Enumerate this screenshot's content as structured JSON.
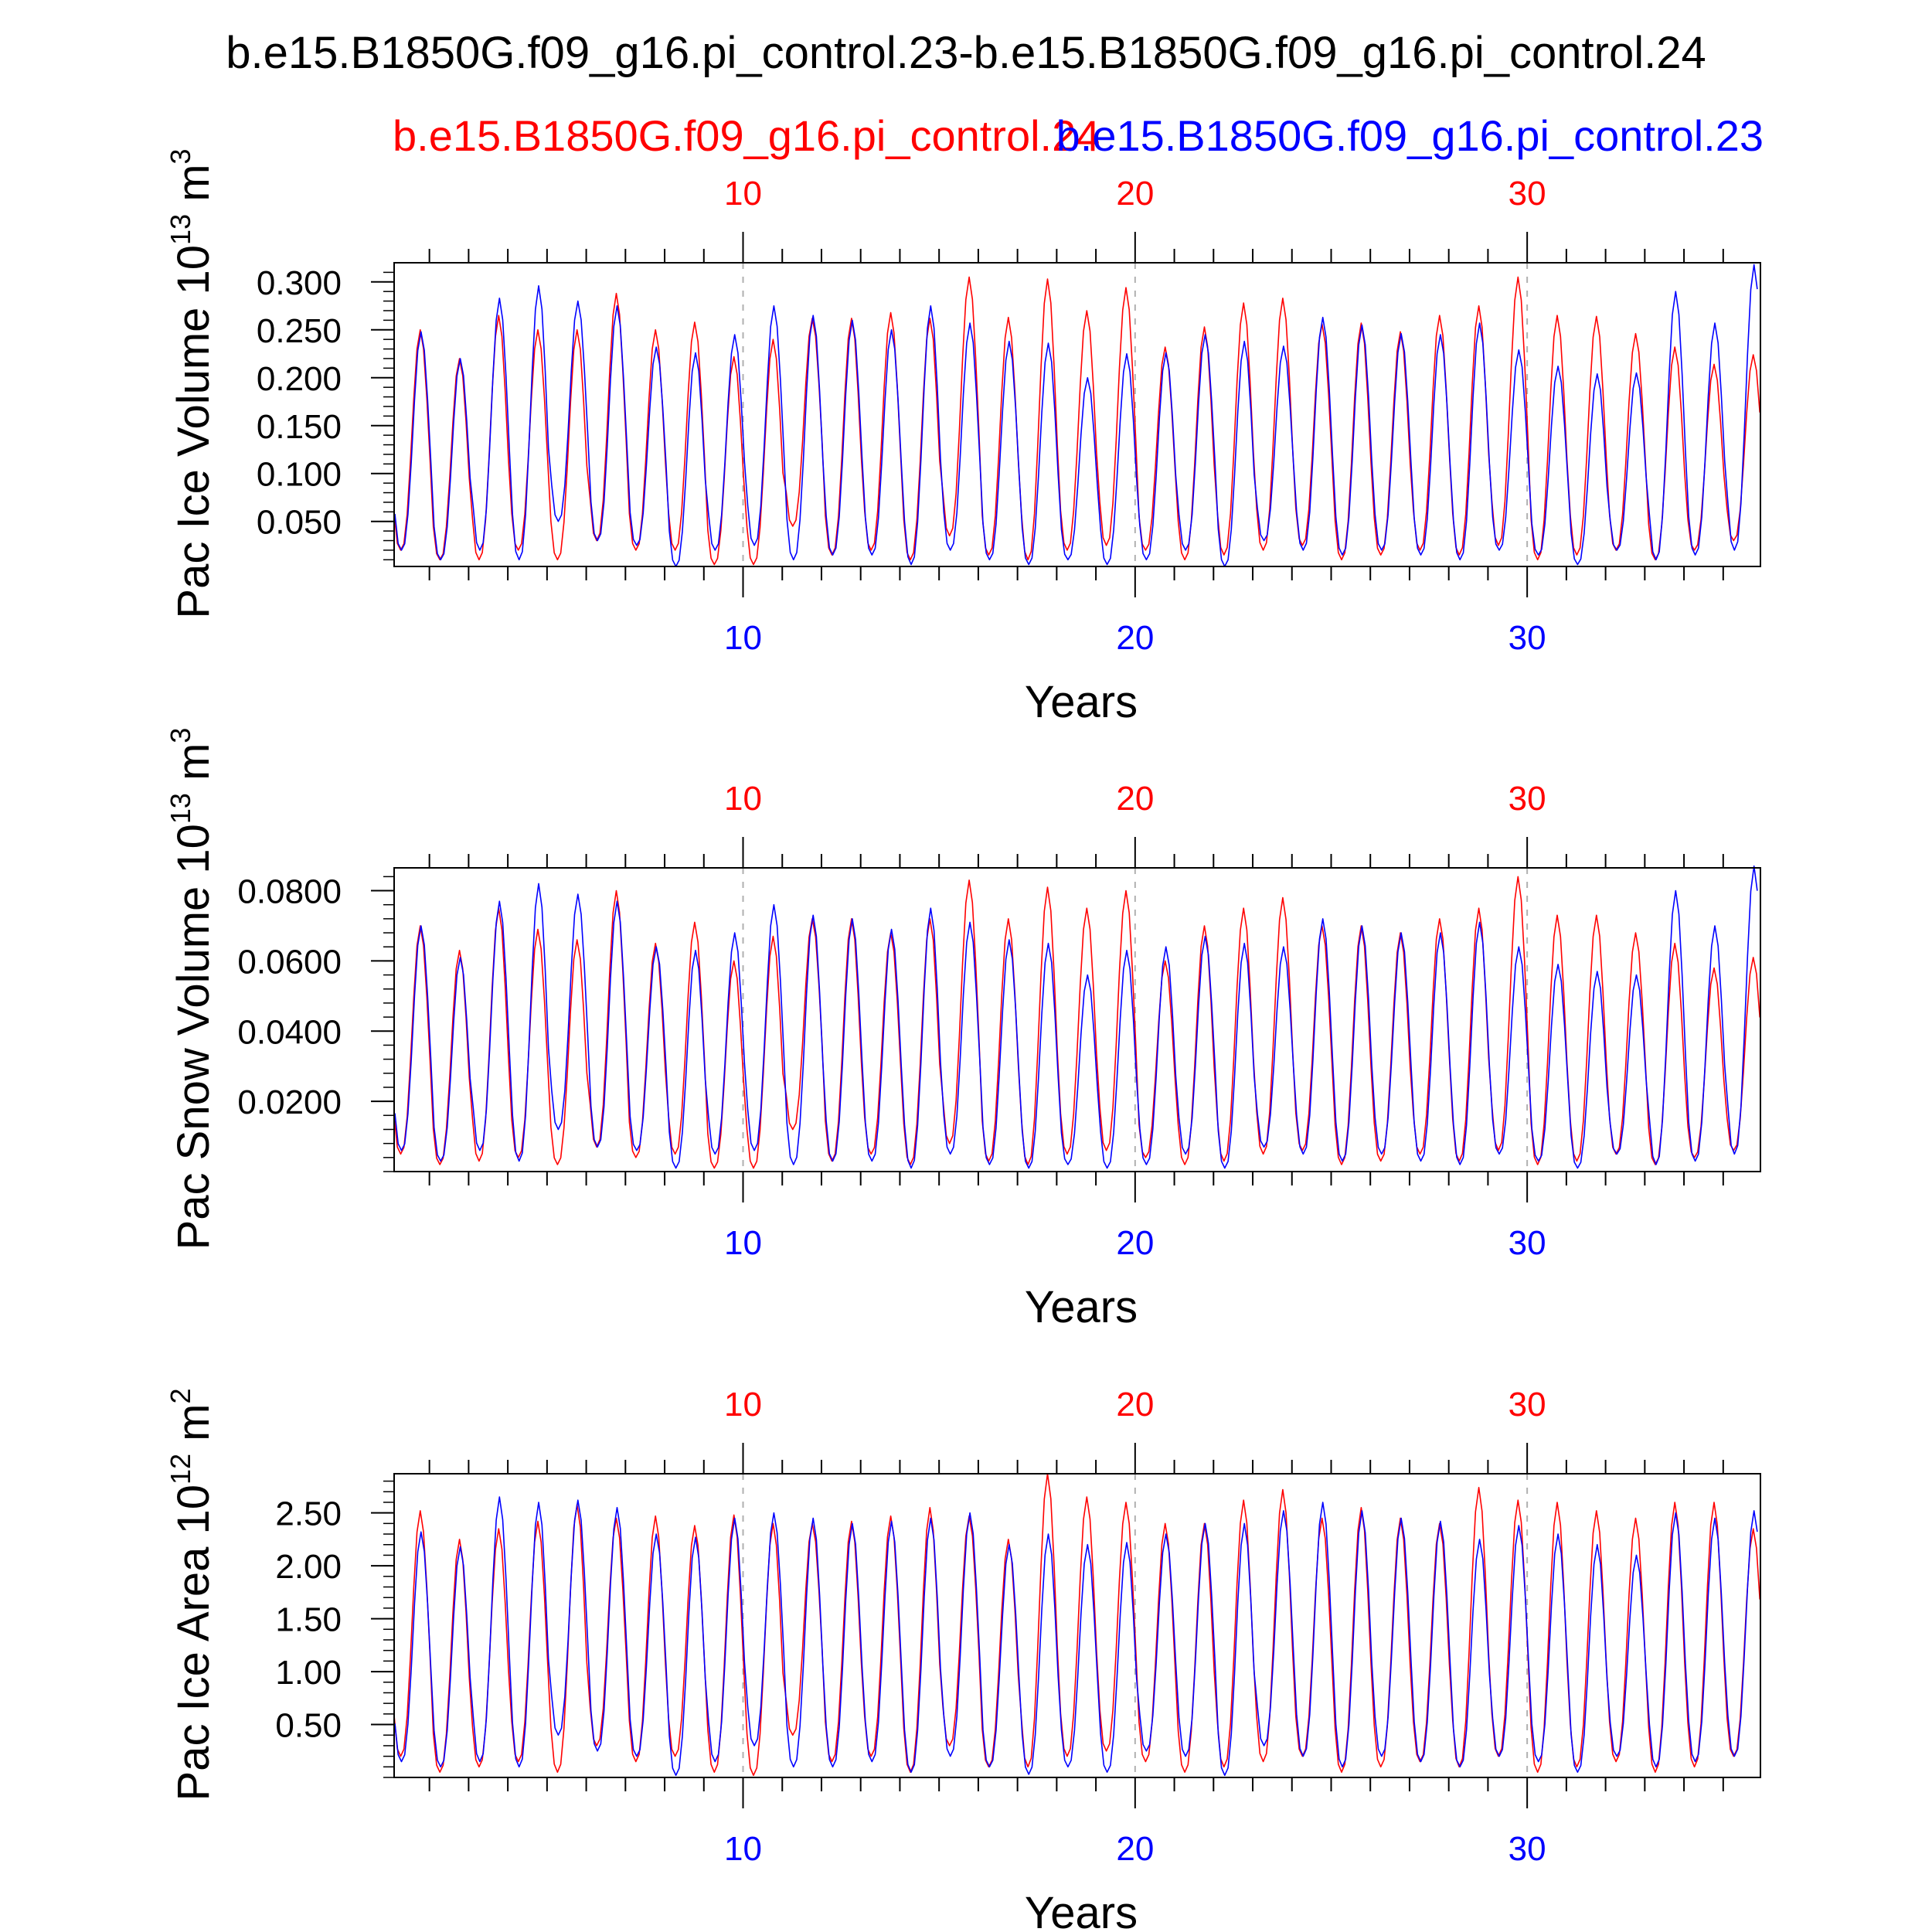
{
  "title": "b.e15.B1850G.f09_g16.pi_control.23-b.e15.B1850G.f09_g16.pi_control.24",
  "legend": {
    "red_label": "b.e15.B1850G.f09_g16.pi_control.24",
    "blue_label": "b.e15.B1850G.f09_g16.pi_control.23"
  },
  "colors": {
    "red": "#ff0000",
    "blue": "#0000ff",
    "axis": "#000000",
    "grid": "#b0b0b0"
  },
  "chart_data": [
    {
      "type": "line",
      "id": "ice-volume",
      "ylabel": "Pac Ice Volume",
      "yunit_base": "10",
      "yunit_exp": "13",
      "yunit_sym": "m",
      "yunit_pow": "3",
      "xlabel": "Years",
      "xlim": [
        1.1,
        35.95
      ],
      "ylim": [
        0.003,
        0.32
      ],
      "yticks": [
        0.05,
        0.1,
        0.15,
        0.2,
        0.25,
        0.3
      ],
      "ytick_labels": [
        "0.050",
        "0.100",
        "0.150",
        "0.200",
        "0.250",
        "0.300"
      ],
      "xticks": [
        10,
        20,
        30
      ],
      "xtick_labels": [
        "10",
        "20",
        "30"
      ],
      "series": [
        {
          "name": "b.e15.B1850G.f09_g16.pi_control.24",
          "color": "red",
          "phase": 0.1,
          "peaks": [
            0.25,
            0.22,
            0.265,
            0.25,
            0.25,
            0.288,
            0.25,
            0.258,
            0.222,
            0.24,
            0.262,
            0.262,
            0.268,
            0.262,
            0.305,
            0.263,
            0.303,
            0.27,
            0.294,
            0.232,
            0.253,
            0.278,
            0.283,
            0.256,
            0.257,
            0.248,
            0.265,
            0.275,
            0.305,
            0.265,
            0.264,
            0.246,
            0.232,
            0.214,
            0.224
          ],
          "troughs": [
            0.02,
            0.01,
            0.01,
            0.02,
            0.01,
            0.03,
            0.02,
            0.02,
            0.005,
            0.005,
            0.045,
            0.015,
            0.02,
            0.01,
            0.035,
            0.015,
            0.01,
            0.02,
            0.025,
            0.02,
            0.01,
            0.015,
            0.02,
            0.025,
            0.01,
            0.015,
            0.02,
            0.015,
            0.025,
            0.01,
            0.015,
            0.02,
            0.01,
            0.02,
            0.03
          ]
        },
        {
          "name": "b.e15.B1850G.f09_g16.pi_control.23",
          "color": "blue",
          "phase": 0.12,
          "peaks": [
            0.248,
            0.22,
            0.283,
            0.296,
            0.28,
            0.275,
            0.232,
            0.226,
            0.245,
            0.275,
            0.265,
            0.26,
            0.25,
            0.275,
            0.257,
            0.238,
            0.236,
            0.2,
            0.225,
            0.226,
            0.245,
            0.238,
            0.233,
            0.263,
            0.255,
            0.246,
            0.245,
            0.257,
            0.229,
            0.212,
            0.204,
            0.205,
            0.29,
            0.257,
            0.318
          ],
          "troughs": [
            0.02,
            0.01,
            0.02,
            0.01,
            0.05,
            0.03,
            0.025,
            0.003,
            0.02,
            0.025,
            0.01,
            0.015,
            0.015,
            0.005,
            0.02,
            0.01,
            0.005,
            0.01,
            0.005,
            0.01,
            0.02,
            0.003,
            0.03,
            0.02,
            0.015,
            0.02,
            0.015,
            0.01,
            0.02,
            0.015,
            0.005,
            0.02,
            0.01,
            0.015,
            0.02
          ]
        }
      ]
    },
    {
      "type": "line",
      "id": "snow-volume",
      "ylabel": "Pac Snow Volume",
      "yunit_base": "10",
      "yunit_exp": "13",
      "yunit_sym": "m",
      "yunit_pow": "3",
      "xlabel": "Years",
      "xlim": [
        1.1,
        35.95
      ],
      "ylim": [
        0.0,
        0.0865
      ],
      "yticks": [
        0.02,
        0.04,
        0.06,
        0.08
      ],
      "ytick_labels": [
        "0.0200",
        "0.0400",
        "0.0600",
        "0.0800"
      ],
      "xticks": [
        10,
        20,
        30
      ],
      "xtick_labels": [
        "10",
        "20",
        "30"
      ],
      "series": [
        {
          "name": "b.e15.B1850G.f09_g16.pi_control.24",
          "color": "red",
          "phase": 0.1,
          "peaks": [
            0.07,
            0.063,
            0.075,
            0.069,
            0.066,
            0.08,
            0.065,
            0.071,
            0.06,
            0.067,
            0.072,
            0.072,
            0.068,
            0.072,
            0.083,
            0.072,
            0.081,
            0.075,
            0.08,
            0.06,
            0.07,
            0.075,
            0.078,
            0.07,
            0.07,
            0.068,
            0.072,
            0.075,
            0.084,
            0.073,
            0.073,
            0.068,
            0.065,
            0.058,
            0.061
          ],
          "troughs": [
            0.005,
            0.002,
            0.003,
            0.004,
            0.002,
            0.007,
            0.004,
            0.005,
            0.001,
            0.001,
            0.012,
            0.003,
            0.005,
            0.002,
            0.008,
            0.003,
            0.002,
            0.005,
            0.006,
            0.004,
            0.002,
            0.003,
            0.005,
            0.006,
            0.002,
            0.003,
            0.005,
            0.003,
            0.006,
            0.002,
            0.003,
            0.005,
            0.002,
            0.004,
            0.006
          ]
        },
        {
          "name": "b.e15.B1850G.f09_g16.pi_control.23",
          "color": "blue",
          "phase": 0.12,
          "peaks": [
            0.07,
            0.061,
            0.077,
            0.082,
            0.079,
            0.077,
            0.064,
            0.063,
            0.068,
            0.076,
            0.073,
            0.072,
            0.069,
            0.075,
            0.071,
            0.066,
            0.065,
            0.056,
            0.063,
            0.064,
            0.067,
            0.065,
            0.064,
            0.072,
            0.07,
            0.068,
            0.068,
            0.071,
            0.064,
            0.059,
            0.057,
            0.056,
            0.08,
            0.07,
            0.087
          ],
          "troughs": [
            0.006,
            0.003,
            0.006,
            0.003,
            0.012,
            0.007,
            0.006,
            0.001,
            0.005,
            0.006,
            0.002,
            0.003,
            0.003,
            0.001,
            0.005,
            0.002,
            0.001,
            0.002,
            0.001,
            0.002,
            0.005,
            0.001,
            0.007,
            0.005,
            0.003,
            0.005,
            0.003,
            0.002,
            0.005,
            0.003,
            0.001,
            0.005,
            0.002,
            0.003,
            0.005
          ]
        }
      ]
    },
    {
      "type": "line",
      "id": "ice-area",
      "ylabel": "Pac Ice Area",
      "yunit_base": "10",
      "yunit_exp": "12",
      "yunit_sym": "m",
      "yunit_pow": "2",
      "xlabel": "Years",
      "xlim": [
        1.1,
        35.95
      ],
      "ylim": [
        0.0,
        2.87
      ],
      "yticks": [
        0.5,
        1.0,
        1.5,
        2.0,
        2.5
      ],
      "ytick_labels": [
        "0.50",
        "1.00",
        "1.50",
        "2.00",
        "2.50"
      ],
      "xticks": [
        10,
        20,
        30
      ],
      "xtick_labels": [
        "10",
        "20",
        "30"
      ],
      "series": [
        {
          "name": "b.e15.B1850G.f09_g16.pi_control.24",
          "color": "red",
          "phase": 0.1,
          "peaks": [
            2.52,
            2.25,
            2.35,
            2.42,
            2.58,
            2.45,
            2.47,
            2.38,
            2.48,
            2.4,
            2.4,
            2.42,
            2.47,
            2.55,
            2.47,
            2.25,
            2.87,
            2.65,
            2.6,
            2.4,
            2.4,
            2.62,
            2.72,
            2.45,
            2.55,
            2.45,
            2.4,
            2.74,
            2.62,
            2.6,
            2.52,
            2.45,
            2.6,
            2.6,
            2.35
          ],
          "troughs": [
            0.2,
            0.05,
            0.1,
            0.15,
            0.05,
            0.3,
            0.15,
            0.2,
            0.05,
            0.02,
            0.4,
            0.15,
            0.2,
            0.05,
            0.3,
            0.1,
            0.1,
            0.2,
            0.25,
            0.15,
            0.05,
            0.1,
            0.15,
            0.2,
            0.05,
            0.1,
            0.15,
            0.1,
            0.2,
            0.05,
            0.1,
            0.15,
            0.05,
            0.1,
            0.2
          ]
        },
        {
          "name": "b.e15.B1850G.f09_g16.pi_control.23",
          "color": "blue",
          "phase": 0.12,
          "peaks": [
            2.32,
            2.18,
            2.65,
            2.6,
            2.62,
            2.55,
            2.3,
            2.27,
            2.45,
            2.5,
            2.45,
            2.4,
            2.42,
            2.45,
            2.5,
            2.2,
            2.3,
            2.2,
            2.22,
            2.3,
            2.4,
            2.4,
            2.52,
            2.6,
            2.52,
            2.45,
            2.42,
            2.25,
            2.38,
            2.3,
            2.2,
            2.1,
            2.5,
            2.45,
            2.52
          ],
          "troughs": [
            0.15,
            0.1,
            0.15,
            0.1,
            0.4,
            0.25,
            0.2,
            0.02,
            0.15,
            0.3,
            0.1,
            0.1,
            0.15,
            0.05,
            0.2,
            0.1,
            0.03,
            0.1,
            0.05,
            0.25,
            0.2,
            0.02,
            0.3,
            0.2,
            0.1,
            0.2,
            0.15,
            0.1,
            0.2,
            0.15,
            0.05,
            0.2,
            0.1,
            0.15,
            0.2
          ]
        }
      ]
    }
  ]
}
